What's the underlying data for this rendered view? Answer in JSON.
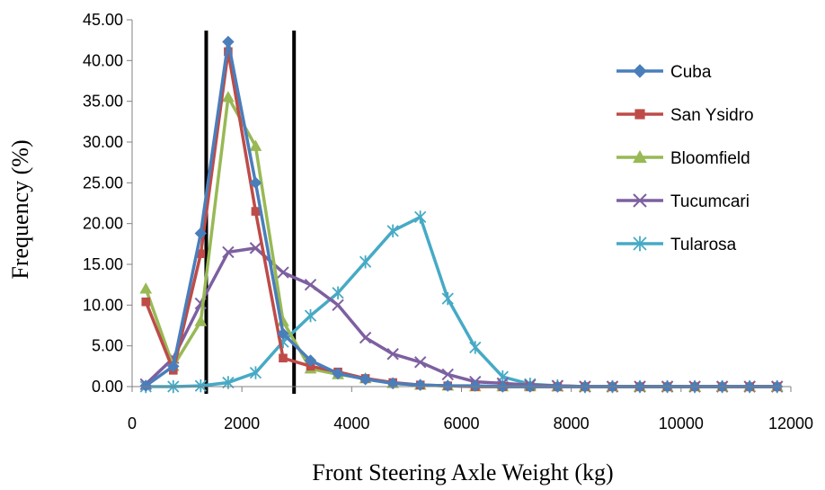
{
  "chart_data": {
    "type": "line",
    "xlabel": "Front Steering Axle Weight (kg)",
    "ylabel": "Frequency (%)",
    "xlim": [
      0,
      12000
    ],
    "ylim": [
      0,
      45
    ],
    "x_ticks": [
      "0",
      "2000",
      "4000",
      "6000",
      "8000",
      "10000",
      "12000"
    ],
    "y_ticks": [
      "0.00",
      "5.00",
      "10.00",
      "15.00",
      "20.00",
      "25.00",
      "30.00",
      "35.00",
      "40.00",
      "45.00"
    ],
    "grid": false,
    "legend_position": "right",
    "vertical_lines": [
      1350,
      2950
    ],
    "x": [
      250,
      750,
      1250,
      1750,
      2250,
      2750,
      3250,
      3750,
      4250,
      4750,
      5250,
      5750,
      6250,
      6750,
      7250,
      7750,
      8250,
      8750,
      9250,
      9750,
      10250,
      10750,
      11250,
      11750
    ],
    "series": [
      {
        "name": "Cuba",
        "color": "#4a7ebb",
        "marker": "diamond",
        "values": [
          0.1,
          2.5,
          18.8,
          42.3,
          25.0,
          6.5,
          3.2,
          1.6,
          0.9,
          0.4,
          0.2,
          0.1,
          0.1,
          0,
          0,
          0,
          0,
          0,
          0,
          0,
          0,
          0,
          0,
          0
        ]
      },
      {
        "name": "San Ysidro",
        "color": "#be4b48",
        "marker": "square",
        "values": [
          10.4,
          2.0,
          16.3,
          41.1,
          21.5,
          3.5,
          2.5,
          1.8,
          1.0,
          0.5,
          0.2,
          0.1,
          0,
          0,
          0,
          0,
          0,
          0,
          0,
          0,
          0,
          0,
          0,
          0
        ]
      },
      {
        "name": "Bloomfield",
        "color": "#98b954",
        "marker": "triangle",
        "values": [
          12.0,
          2.5,
          8.0,
          35.5,
          29.5,
          8.0,
          2.2,
          1.5,
          1.0,
          0.4,
          0.2,
          0.1,
          0,
          0,
          0,
          0,
          0,
          0,
          0,
          0,
          0,
          0,
          0,
          0
        ]
      },
      {
        "name": "Tucumcari",
        "color": "#7d60a0",
        "marker": "x",
        "values": [
          0.3,
          3.5,
          10.2,
          16.5,
          17.0,
          14.0,
          12.5,
          10.0,
          6.0,
          4.0,
          3.0,
          1.5,
          0.6,
          0.4,
          0.2,
          0.1,
          0,
          0,
          0,
          0,
          0,
          0,
          0,
          0
        ]
      },
      {
        "name": "Tularosa",
        "color": "#46aac5",
        "marker": "asterisk",
        "values": [
          0,
          0,
          0.1,
          0.5,
          1.7,
          5.5,
          8.7,
          11.5,
          15.3,
          19.1,
          20.8,
          10.8,
          4.8,
          1.2,
          0.3,
          0.1,
          0,
          0,
          0,
          0,
          0,
          0,
          0,
          0
        ]
      }
    ]
  }
}
